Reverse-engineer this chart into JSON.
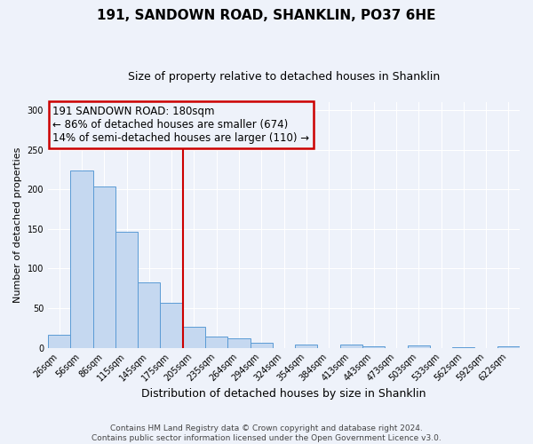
{
  "title": "191, SANDOWN ROAD, SHANKLIN, PO37 6HE",
  "subtitle": "Size of property relative to detached houses in Shanklin",
  "xlabel": "Distribution of detached houses by size in Shanklin",
  "ylabel": "Number of detached properties",
  "bin_labels": [
    "26sqm",
    "56sqm",
    "86sqm",
    "115sqm",
    "145sqm",
    "175sqm",
    "205sqm",
    "235sqm",
    "264sqm",
    "294sqm",
    "324sqm",
    "354sqm",
    "384sqm",
    "413sqm",
    "443sqm",
    "473sqm",
    "503sqm",
    "533sqm",
    "562sqm",
    "592sqm",
    "622sqm"
  ],
  "bar_heights": [
    16,
    224,
    204,
    146,
    83,
    57,
    26,
    14,
    12,
    6,
    0,
    4,
    0,
    4,
    2,
    0,
    3,
    0,
    1,
    0,
    2
  ],
  "bar_color": "#c5d8f0",
  "bar_edge_color": "#5b9bd5",
  "vline_x": 5.5,
  "vline_color": "#cc0000",
  "annotation_title": "191 SANDOWN ROAD: 180sqm",
  "annotation_line1": "← 86% of detached houses are smaller (674)",
  "annotation_line2": "14% of semi-detached houses are larger (110) →",
  "annotation_box_color": "#cc0000",
  "ylim": [
    0,
    310
  ],
  "yticks": [
    0,
    50,
    100,
    150,
    200,
    250,
    300
  ],
  "footer1": "Contains HM Land Registry data © Crown copyright and database right 2024.",
  "footer2": "Contains public sector information licensed under the Open Government Licence v3.0.",
  "background_color": "#eef2fa",
  "grid_color": "#ffffff",
  "title_fontsize": 11,
  "subtitle_fontsize": 9,
  "ylabel_fontsize": 8,
  "xlabel_fontsize": 9,
  "tick_fontsize": 7,
  "footer_fontsize": 6.5,
  "ann_fontsize": 8.5
}
